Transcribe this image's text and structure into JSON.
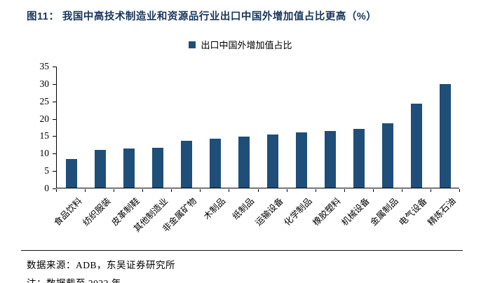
{
  "header": {
    "title": "图11：  我国中高技术制造业和资源品行业出口中国外增加值占比更高（%）"
  },
  "legend": {
    "label": "出口中国外增加值占比"
  },
  "chart_data": {
    "type": "bar",
    "title": "我国中高技术制造业和资源品行业出口中国外增加值占比更高（%）",
    "categories": [
      "食品饮料",
      "纺织服装",
      "皮革制鞋",
      "其他制造业",
      "非金属矿物",
      "木制品",
      "纸制品",
      "运输设备",
      "化学制品",
      "橡胶塑料",
      "机械设备",
      "金属制品",
      "电气设备",
      "精炼石油"
    ],
    "values": [
      8.3,
      10.8,
      11.2,
      11.4,
      13.4,
      14.1,
      14.7,
      15.2,
      15.9,
      16.2,
      16.8,
      18.6,
      24.2,
      29.8
    ],
    "series_name": "出口中国外增加值占比",
    "xlabel": "",
    "ylabel": "",
    "ylim": [
      0,
      35
    ],
    "yticks": [
      0,
      5,
      10,
      15,
      20,
      25,
      30,
      35
    ],
    "grid": false,
    "legend_position": "top-center",
    "bar_color": "#1f4e79"
  },
  "footer": {
    "source": "数据来源：ADB，东吴证券研究所",
    "note": "注：数据截至 2022 年"
  },
  "colors": {
    "bar": "#1f4e79",
    "title": "#17365d",
    "axis": "#000000"
  }
}
